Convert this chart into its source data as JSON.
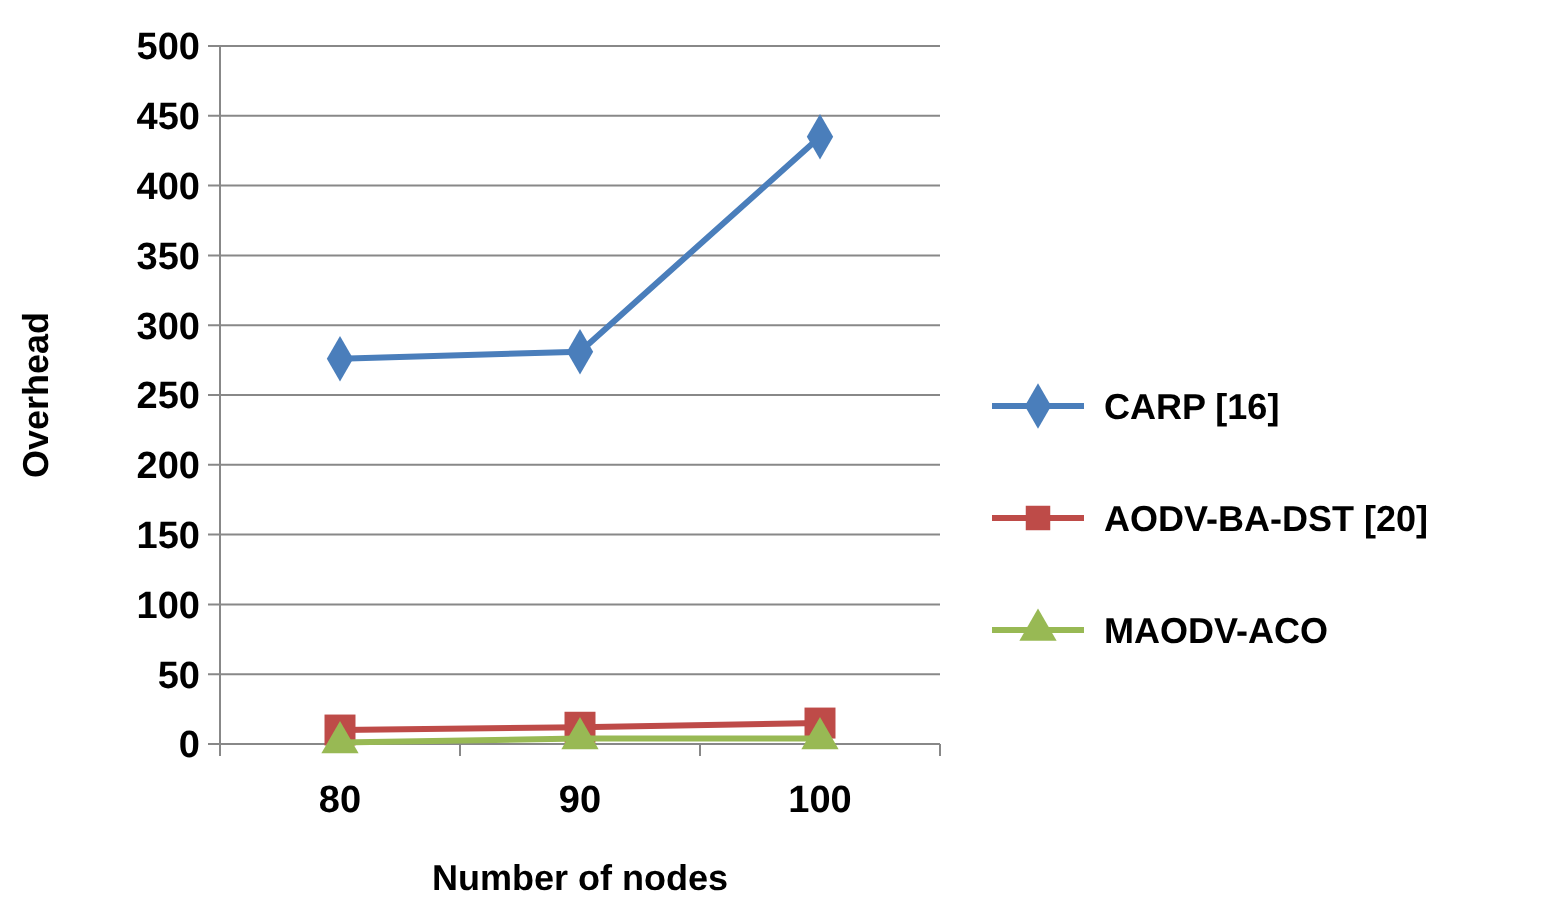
{
  "chart_data": {
    "type": "line",
    "xlabel": "Number of nodes",
    "ylabel": "Overhead",
    "categories": [
      "80",
      "90",
      "100"
    ],
    "series": [
      {
        "name": "CARP [16]",
        "color": "#4a7ebb",
        "marker": "diamond",
        "values": [
          276,
          281,
          435
        ]
      },
      {
        "name": "AODV-BA-DST [20]",
        "color": "#be4b48",
        "marker": "square",
        "values": [
          10,
          12,
          15
        ]
      },
      {
        "name": "MAODV-ACO",
        "color": "#98b954",
        "marker": "triangle",
        "values": [
          1,
          4,
          4
        ]
      }
    ],
    "ylim": [
      0,
      500
    ],
    "yticks": [
      0,
      50,
      100,
      150,
      200,
      250,
      300,
      350,
      400,
      450,
      500
    ],
    "grid": "y",
    "legend": "right"
  }
}
